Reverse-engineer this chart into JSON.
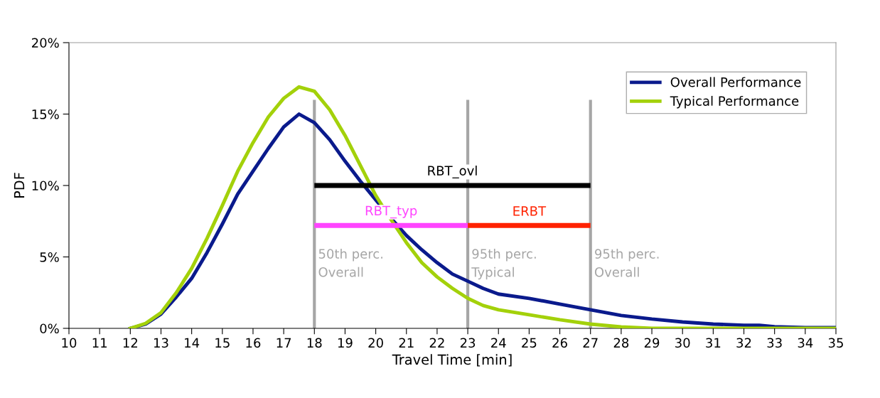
{
  "chart_data": {
    "type": "line",
    "xlabel": "Travel Time [min]",
    "ylabel": "PDF",
    "x": [
      12,
      12.5,
      13,
      13.5,
      14,
      14.5,
      15,
      15.5,
      16,
      16.5,
      17,
      17.5,
      18,
      18.5,
      19,
      19.5,
      20,
      20.5,
      21,
      21.5,
      22,
      22.5,
      23,
      23.5,
      24,
      25,
      26,
      27,
      28,
      29,
      30,
      31,
      32,
      32.5,
      33,
      34,
      35
    ],
    "series": [
      {
        "name": "Overall Performance",
        "color": "#0a1a8c",
        "values": [
          0,
          0.3,
          1.0,
          2.2,
          3.5,
          5.3,
          7.3,
          9.4,
          11.0,
          12.6,
          14.1,
          15.0,
          14.4,
          13.2,
          11.7,
          10.3,
          9.0,
          7.7,
          6.5,
          5.5,
          4.6,
          3.8,
          3.3,
          2.8,
          2.4,
          2.1,
          1.7,
          1.3,
          0.9,
          0.65,
          0.45,
          0.3,
          0.22,
          0.22,
          0.12,
          0.05,
          0.05
        ]
      },
      {
        "name": "Typical Performance",
        "color": "#a3d10a",
        "values": [
          0,
          0.35,
          1.1,
          2.5,
          4.2,
          6.3,
          8.6,
          11.0,
          13.0,
          14.8,
          16.1,
          16.9,
          16.6,
          15.3,
          13.5,
          11.4,
          9.3,
          7.6,
          6.0,
          4.6,
          3.6,
          2.8,
          2.1,
          1.6,
          1.3,
          0.95,
          0.6,
          0.3,
          0.1,
          0,
          0,
          0,
          0,
          0,
          0,
          0,
          0
        ]
      },
      {
        "name": "RBT_ovl",
        "type": "line",
        "color": "#000000",
        "x": [
          18,
          27
        ],
        "values": [
          10,
          10
        ]
      },
      {
        "name": "RBT_typ",
        "type": "line",
        "color": "#ff44ff",
        "x": [
          18,
          23
        ],
        "values": [
          7.2,
          7.2
        ]
      },
      {
        "name": "ERBT",
        "type": "line",
        "color": "#ff2200",
        "x": [
          23,
          27
        ],
        "values": [
          7.2,
          7.2
        ]
      }
    ],
    "ref_lines": [
      {
        "axis": "x",
        "value": 18,
        "label": "50th perc.\nOverall",
        "color": "#a6a6a6"
      },
      {
        "axis": "x",
        "value": 23,
        "label": "95th perc.\nTypical",
        "color": "#a6a6a6"
      },
      {
        "axis": "x",
        "value": 27,
        "label": "95th perc.\nOverall",
        "color": "#a6a6a6"
      }
    ],
    "xlim": [
      10,
      35
    ],
    "xticks": [
      10,
      11,
      12,
      13,
      14,
      15,
      16,
      17,
      18,
      19,
      20,
      21,
      22,
      23,
      24,
      25,
      26,
      27,
      28,
      29,
      30,
      31,
      32,
      33,
      34,
      35
    ],
    "ylim": [
      0,
      20
    ],
    "yticks": [
      {
        "value": 0,
        "label": "0%"
      },
      {
        "value": 5,
        "label": "5%"
      },
      {
        "value": 10,
        "label": "10%"
      },
      {
        "value": 15,
        "label": "15%"
      },
      {
        "value": 20,
        "label": "20%"
      }
    ],
    "grid": false,
    "legend": "top right",
    "marker": "none",
    "line_style": "solid"
  }
}
